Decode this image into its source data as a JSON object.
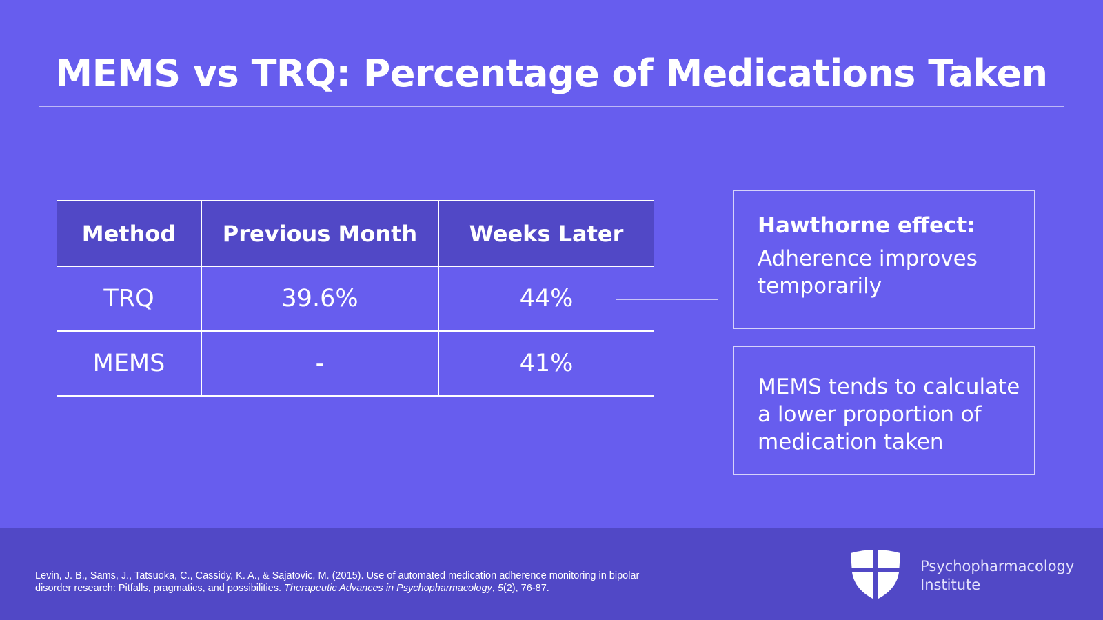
{
  "title": "MEMS vs TRQ: Percentage of Medications Taken",
  "table": {
    "headers": [
      "Method",
      "Previous Month",
      "Weeks Later"
    ],
    "rows": [
      [
        "TRQ",
        "39.6%",
        "44%"
      ],
      [
        "MEMS",
        "-",
        "41%"
      ]
    ]
  },
  "notes": [
    {
      "heading": "Hawthorne effect:",
      "body": "Adherence improves temporarily"
    },
    {
      "body": "MEMS tends to calculate a lower proportion of medication taken"
    }
  ],
  "citation": {
    "main": "Levin, J. B., Sams, J., Tatsuoka, C., Cassidy, K. A., & Sajatovic, M. (2015). Use of automated medication adherence monitoring in bipolar disorder research: Pitfalls, pragmatics, and possibilities.",
    "journal": "Therapeutic Advances in Psychopharmacology",
    "volume": "5",
    "issue_pages": "(2), 76-87."
  },
  "logo": {
    "line1": "Psychopharmacology",
    "line2": "Institute",
    "icon": "shield-icon"
  },
  "colors": {
    "background": "#675DEE",
    "header_fill": "#5148C6",
    "footer": "#5148C6",
    "text": "#FFFFFF"
  }
}
